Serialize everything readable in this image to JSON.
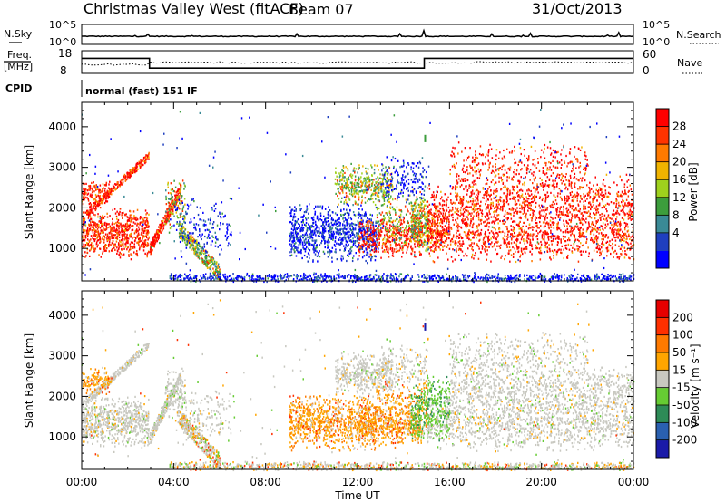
{
  "header": {
    "title": "Christmas Valley West (fitACF)",
    "beam": "Beam 07",
    "date": "31/Oct/2013"
  },
  "strips": {
    "nsky_label": "N.Sky",
    "nsky_ticks": [
      "10^5",
      "10^0"
    ],
    "nsearch_label": "N.Search",
    "nsearch_ticks": [
      "10^5",
      "10^0"
    ],
    "freq_label_1": "Freq.",
    "freq_label_2": "[MHz]",
    "freq_ticks": [
      "18",
      "8"
    ],
    "nave_label": "Nave",
    "nave_ticks": [
      "60",
      "0"
    ],
    "cpid_label": "CPID",
    "cpid_value": "normal (fast) 151 IF"
  },
  "chart_data": [
    {
      "type": "heatmap",
      "panel": "power",
      "ylabel": "Slant Range [km]",
      "yticks": [
        1000,
        2000,
        3000,
        4000
      ],
      "ylim": [
        200,
        4600
      ],
      "xticks": [
        "00:00",
        "04:00",
        "08:00",
        "12:00",
        "16:00",
        "20:00",
        "00:00"
      ],
      "xlim_hours": [
        0,
        24
      ],
      "colorbar": {
        "label": "Power [dB]",
        "ticks": [
          "28",
          "24",
          "20",
          "16",
          "12",
          "8",
          "4"
        ],
        "colors": [
          "#0000ff",
          "#1f3fbf",
          "#3a8a96",
          "#3c9d3c",
          "#9fd11d",
          "#f0b400",
          "#ff7a00",
          "#ff3300",
          "#ff0000"
        ]
      }
    },
    {
      "type": "heatmap",
      "panel": "velocity",
      "ylabel": "Slant Range [km]",
      "yticks": [
        1000,
        2000,
        3000,
        4000
      ],
      "ylim": [
        200,
        4600
      ],
      "xticks": [
        "00:00",
        "04:00",
        "08:00",
        "12:00",
        "16:00",
        "20:00",
        "00:00"
      ],
      "xlabel": "Time UT",
      "colorbar": {
        "label": "Velocity [m s⁻¹]",
        "ticks": [
          "200",
          "100",
          "50",
          "15",
          "-15",
          "-50",
          "-100",
          "-200"
        ],
        "colors": [
          "#1a1aa8",
          "#2a60b0",
          "#2e8b57",
          "#66cc33",
          "#c8c8c0",
          "#ffa500",
          "#ff7a00",
          "#ff3000",
          "#e60000"
        ]
      }
    }
  ]
}
